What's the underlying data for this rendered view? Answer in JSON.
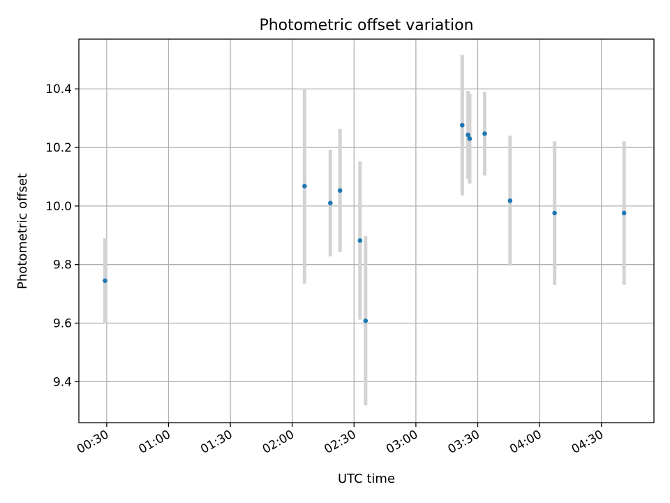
{
  "chart_data": {
    "type": "scatter",
    "title": "Photometric offset variation",
    "xlabel": "UTC time",
    "ylabel": "Photometric offset",
    "x_unit": "minutes since 00:00 UTC",
    "xlim": [
      16.5,
      295.5
    ],
    "ylim": [
      9.26,
      10.57
    ],
    "grid": true,
    "x_ticks": [
      {
        "value": 30,
        "label": "00:30"
      },
      {
        "value": 60,
        "label": "01:00"
      },
      {
        "value": 90,
        "label": "01:30"
      },
      {
        "value": 120,
        "label": "02:00"
      },
      {
        "value": 150,
        "label": "02:30"
      },
      {
        "value": 180,
        "label": "03:00"
      },
      {
        "value": 210,
        "label": "03:30"
      },
      {
        "value": 240,
        "label": "04:00"
      },
      {
        "value": 270,
        "label": "04:30"
      }
    ],
    "y_ticks": [
      {
        "value": 9.4,
        "label": "9.4"
      },
      {
        "value": 9.6,
        "label": "9.6"
      },
      {
        "value": 9.8,
        "label": "9.8"
      },
      {
        "value": 10.0,
        "label": "10.0"
      },
      {
        "value": 10.2,
        "label": "10.2"
      },
      {
        "value": 10.4,
        "label": "10.4"
      }
    ],
    "point_color": "#1f77b4",
    "errorbar_color": "#d3d3d3",
    "points": [
      {
        "x": 29.2,
        "y": 9.745,
        "yerr": 0.145
      },
      {
        "x": 126.0,
        "y": 10.068,
        "yerr": 0.333
      },
      {
        "x": 138.5,
        "y": 10.01,
        "yerr": 0.182
      },
      {
        "x": 143.2,
        "y": 10.053,
        "yerr": 0.21
      },
      {
        "x": 152.9,
        "y": 9.882,
        "yerr": 0.27
      },
      {
        "x": 155.6,
        "y": 9.608,
        "yerr": 0.289
      },
      {
        "x": 202.5,
        "y": 10.276,
        "yerr": 0.24
      },
      {
        "x": 205.3,
        "y": 10.243,
        "yerr": 0.15
      },
      {
        "x": 206.1,
        "y": 10.23,
        "yerr": 0.153
      },
      {
        "x": 213.4,
        "y": 10.247,
        "yerr": 0.143
      },
      {
        "x": 225.7,
        "y": 10.018,
        "yerr": 0.222
      },
      {
        "x": 247.3,
        "y": 9.976,
        "yerr": 0.245
      },
      {
        "x": 281.0,
        "y": 9.976,
        "yerr": 0.245
      }
    ]
  }
}
